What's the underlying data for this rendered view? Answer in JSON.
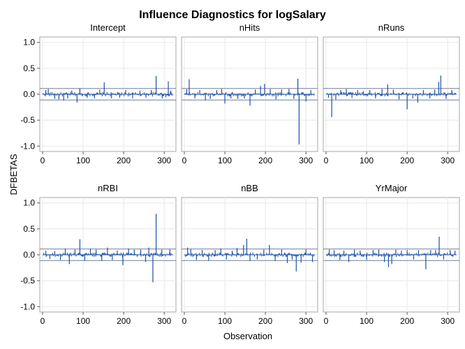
{
  "chart_data": {
    "type": "bar",
    "title": "Influence Diagnostics for logSalary",
    "xlabel": "Observation",
    "ylabel": "DFBETAS",
    "xlim": [
      0,
      322
    ],
    "ylim": [
      -1.05,
      1.05
    ],
    "xticks": [
      0,
      100,
      200,
      300
    ],
    "yticks": [
      1.0,
      0.5,
      0.0,
      -0.5,
      -1.0
    ],
    "ytick_labels": [
      "1.0",
      "0.5",
      "0.0",
      "-0.5",
      "-1.0"
    ],
    "cutoff": 0.1113,
    "grid": true,
    "color": "#1f4fa6",
    "cutoff_color": "#6b7f99",
    "panels": [
      {
        "name": "Intercept",
        "spikes": [
          [
            8,
            0.08
          ],
          [
            14,
            0.1
          ],
          [
            30,
            -0.09
          ],
          [
            40,
            -0.1
          ],
          [
            52,
            -0.12
          ],
          [
            62,
            -0.08
          ],
          [
            72,
            0.07
          ],
          [
            85,
            -0.16
          ],
          [
            92,
            0.11
          ],
          [
            110,
            -0.07
          ],
          [
            128,
            -0.08
          ],
          [
            141,
            0.09
          ],
          [
            152,
            0.23
          ],
          [
            170,
            -0.08
          ],
          [
            190,
            -0.07
          ],
          [
            205,
            0.08
          ],
          [
            222,
            -0.08
          ],
          [
            240,
            0.07
          ],
          [
            255,
            -0.07
          ],
          [
            268,
            0.08
          ],
          [
            280,
            0.35
          ],
          [
            295,
            -0.08
          ],
          [
            304,
            -0.06
          ],
          [
            310,
            0.25
          ],
          [
            316,
            0.07
          ]
        ]
      },
      {
        "name": "nHits",
        "spikes": [
          [
            6,
            0.1
          ],
          [
            12,
            0.29
          ],
          [
            26,
            -0.08
          ],
          [
            38,
            0.08
          ],
          [
            52,
            -0.12
          ],
          [
            64,
            -0.09
          ],
          [
            80,
            0.08
          ],
          [
            92,
            0.1
          ],
          [
            100,
            -0.18
          ],
          [
            115,
            -0.08
          ],
          [
            132,
            -0.09
          ],
          [
            148,
            -0.08
          ],
          [
            162,
            -0.22
          ],
          [
            175,
            0.09
          ],
          [
            188,
            0.16
          ],
          [
            198,
            0.2
          ],
          [
            212,
            0.1
          ],
          [
            226,
            -0.1
          ],
          [
            240,
            0.09
          ],
          [
            258,
            0.1
          ],
          [
            270,
            -0.09
          ],
          [
            280,
            0.3
          ],
          [
            283,
            -0.97
          ],
          [
            300,
            -0.14
          ],
          [
            312,
            0.08
          ]
        ]
      },
      {
        "name": "nRuns",
        "spikes": [
          [
            6,
            -0.07
          ],
          [
            14,
            -0.44
          ],
          [
            24,
            -0.1
          ],
          [
            36,
            0.08
          ],
          [
            50,
            0.1
          ],
          [
            64,
            -0.07
          ],
          [
            78,
            0.08
          ],
          [
            92,
            0.06
          ],
          [
            108,
            0.08
          ],
          [
            122,
            -0.08
          ],
          [
            138,
            0.1
          ],
          [
            152,
            0.19
          ],
          [
            166,
            0.09
          ],
          [
            180,
            -0.1
          ],
          [
            200,
            -0.29
          ],
          [
            214,
            -0.08
          ],
          [
            226,
            -0.16
          ],
          [
            240,
            0.08
          ],
          [
            256,
            -0.08
          ],
          [
            268,
            0.09
          ],
          [
            278,
            0.24
          ],
          [
            283,
            0.36
          ],
          [
            296,
            -0.09
          ],
          [
            310,
            0.08
          ]
        ]
      },
      {
        "name": "nRBI",
        "spikes": [
          [
            8,
            0.08
          ],
          [
            18,
            -0.08
          ],
          [
            30,
            0.07
          ],
          [
            44,
            -0.1
          ],
          [
            56,
            0.12
          ],
          [
            66,
            -0.18
          ],
          [
            80,
            0.1
          ],
          [
            92,
            0.3
          ],
          [
            104,
            -0.12
          ],
          [
            118,
            0.12
          ],
          [
            132,
            0.1
          ],
          [
            146,
            -0.12
          ],
          [
            160,
            0.14
          ],
          [
            172,
            -0.1
          ],
          [
            184,
            0.08
          ],
          [
            198,
            -0.2
          ],
          [
            212,
            0.12
          ],
          [
            226,
            0.1
          ],
          [
            242,
            0.1
          ],
          [
            254,
            -0.14
          ],
          [
            262,
            0.14
          ],
          [
            272,
            -0.53
          ],
          [
            280,
            0.79
          ],
          [
            294,
            0.1
          ],
          [
            314,
            0.1
          ]
        ]
      },
      {
        "name": "nBB",
        "spikes": [
          [
            8,
            0.14
          ],
          [
            16,
            0.11
          ],
          [
            30,
            -0.1
          ],
          [
            44,
            0.09
          ],
          [
            60,
            -0.11
          ],
          [
            76,
            0.09
          ],
          [
            90,
            0.12
          ],
          [
            104,
            -0.09
          ],
          [
            118,
            0.08
          ],
          [
            130,
            0.13
          ],
          [
            146,
            0.19
          ],
          [
            154,
            0.31
          ],
          [
            162,
            -0.12
          ],
          [
            180,
            -0.09
          ],
          [
            196,
            0.1
          ],
          [
            210,
            0.19
          ],
          [
            224,
            -0.12
          ],
          [
            240,
            0.1
          ],
          [
            254,
            -0.16
          ],
          [
            266,
            -0.09
          ],
          [
            276,
            -0.32
          ],
          [
            288,
            -0.15
          ],
          [
            300,
            0.1
          ],
          [
            316,
            -0.14
          ]
        ]
      },
      {
        "name": "YrMajor",
        "spikes": [
          [
            8,
            0.1
          ],
          [
            20,
            0.09
          ],
          [
            34,
            -0.1
          ],
          [
            44,
            0.08
          ],
          [
            56,
            -0.14
          ],
          [
            70,
            0.1
          ],
          [
            84,
            0.08
          ],
          [
            100,
            -0.1
          ],
          [
            116,
            0.09
          ],
          [
            130,
            0.1
          ],
          [
            144,
            -0.14
          ],
          [
            154,
            -0.24
          ],
          [
            162,
            -0.18
          ],
          [
            172,
            0.1
          ],
          [
            186,
            0.08
          ],
          [
            200,
            0.09
          ],
          [
            216,
            -0.09
          ],
          [
            228,
            0.09
          ],
          [
            246,
            -0.28
          ],
          [
            258,
            0.09
          ],
          [
            270,
            0.09
          ],
          [
            279,
            0.35
          ],
          [
            290,
            -0.09
          ],
          [
            306,
            0.09
          ],
          [
            318,
            0.08
          ]
        ]
      }
    ]
  }
}
